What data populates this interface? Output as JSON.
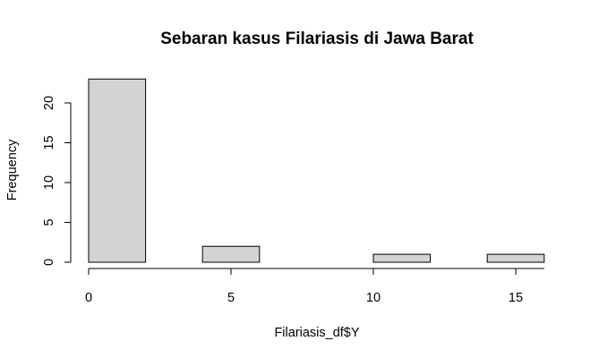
{
  "chart_data": {
    "type": "bar",
    "title": "Sebaran kasus Filariasis di Jawa Barat",
    "xlabel": "Filariasis_df$Y",
    "ylabel": "Frequency",
    "bins": [
      {
        "x0": 0,
        "x1": 2,
        "count": 23
      },
      {
        "x0": 2,
        "x1": 4,
        "count": 0
      },
      {
        "x0": 4,
        "x1": 6,
        "count": 2
      },
      {
        "x0": 6,
        "x1": 8,
        "count": 0
      },
      {
        "x0": 8,
        "x1": 10,
        "count": 0
      },
      {
        "x0": 10,
        "x1": 12,
        "count": 1
      },
      {
        "x0": 12,
        "x1": 14,
        "count": 0
      },
      {
        "x0": 14,
        "x1": 16,
        "count": 1
      }
    ],
    "xlim": [
      0,
      16
    ],
    "ylim": [
      0,
      23
    ],
    "x_ticks": [
      "0",
      "5",
      "10",
      "15"
    ],
    "y_ticks": [
      "0",
      "5",
      "10",
      "15",
      "20"
    ],
    "bar_fill": "#d3d3d3",
    "bar_stroke": "#000000",
    "grid": false,
    "legend": "none"
  }
}
